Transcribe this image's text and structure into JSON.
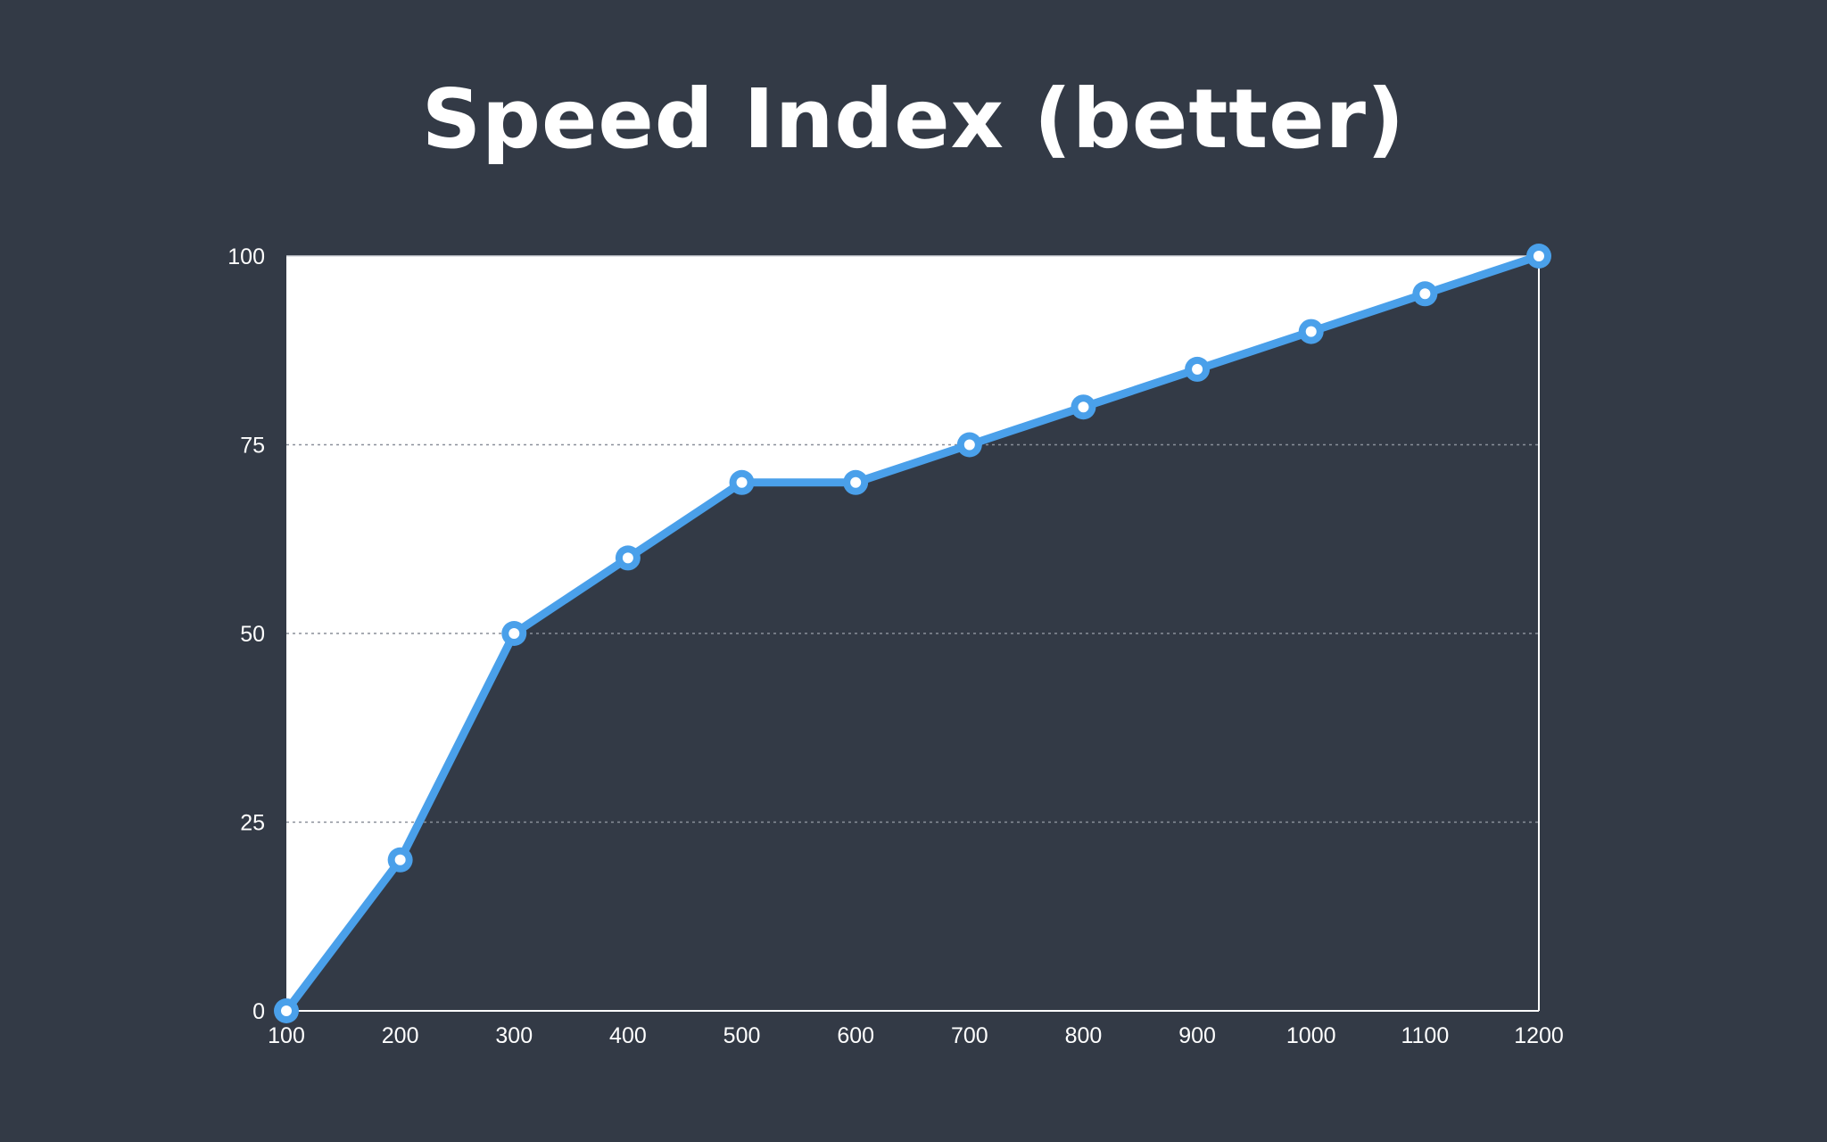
{
  "colors": {
    "background": "#333a46",
    "area_above": "#ffffff",
    "line": "#4aa0ea",
    "axis": "#ffffff",
    "grid": "#8a8f99",
    "text": "#ffffff"
  },
  "chart_data": {
    "type": "line",
    "title": "Speed Index (better)",
    "xlabel": "",
    "ylabel": "",
    "x": [
      100,
      200,
      300,
      400,
      500,
      600,
      700,
      800,
      900,
      1000,
      1100,
      1200
    ],
    "series": [
      {
        "values": [
          0,
          20,
          50,
          60,
          70,
          70,
          75,
          80,
          85,
          90,
          95,
          100
        ],
        "color": "#4aa0ea"
      }
    ],
    "xlim": [
      100,
      1200
    ],
    "ylim": [
      0,
      100
    ],
    "x_ticks": [
      "100",
      "200",
      "300",
      "400",
      "500",
      "600",
      "700",
      "800",
      "900",
      "1000",
      "1100",
      "1200"
    ],
    "y_ticks": [
      "0",
      "25",
      "50",
      "75",
      "100"
    ],
    "grid": "horizontal dotted",
    "legend": "none",
    "fill_above_line": true
  }
}
